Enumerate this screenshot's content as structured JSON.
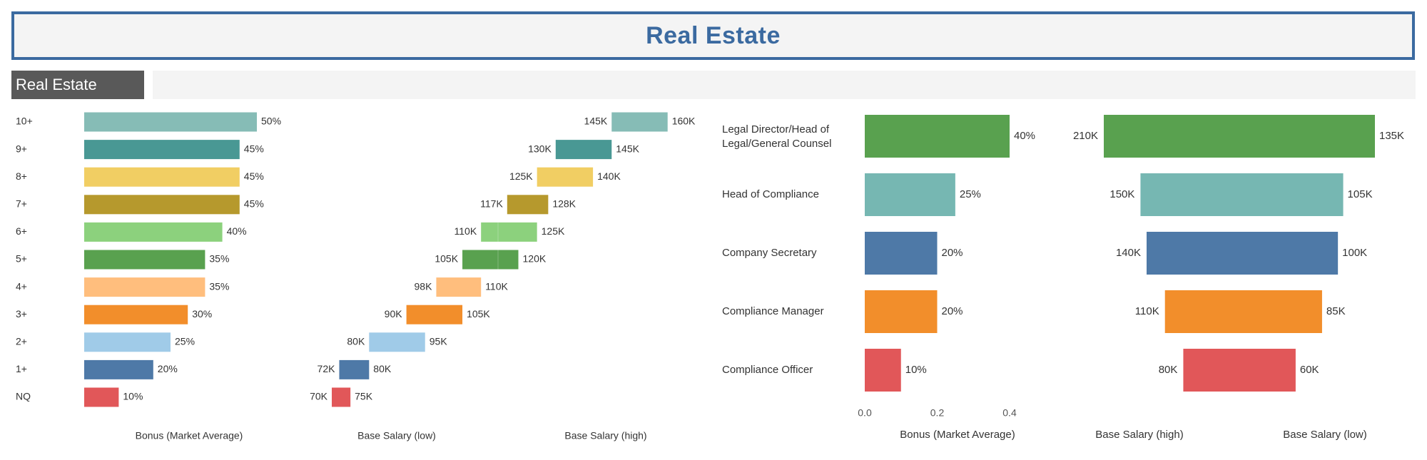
{
  "header": {
    "title": "Real Estate",
    "tab_label": "Real Estate"
  },
  "chart_data": [
    {
      "type": "bar",
      "title": "",
      "xlabel": "Bonus (Market Average)",
      "categories": [
        "10+",
        "9+",
        "8+",
        "7+",
        "6+",
        "5+",
        "4+",
        "3+",
        "2+",
        "1+",
        "NQ"
      ],
      "values": [
        50,
        45,
        45,
        45,
        40,
        35,
        35,
        30,
        25,
        20,
        10
      ],
      "value_labels": [
        "50%",
        "45%",
        "45%",
        "45%",
        "40%",
        "35%",
        "35%",
        "30%",
        "25%",
        "20%",
        "10%"
      ],
      "colors": [
        "#86bcb6",
        "#499894",
        "#f1ce63",
        "#b6992d",
        "#8cd17d",
        "#59a14f",
        "#ffbe7d",
        "#f28e2b",
        "#a0cbe8",
        "#4e79a7",
        "#e15759"
      ]
    },
    {
      "type": "bar",
      "title": "",
      "xlabels": [
        "Base Salary (low)",
        "Base Salary (high)"
      ],
      "categories": [
        "10+",
        "9+",
        "8+",
        "7+",
        "6+",
        "5+",
        "4+",
        "3+",
        "2+",
        "1+",
        "NQ"
      ],
      "series": [
        {
          "name": "Base Salary (low)",
          "values": [
            145,
            130,
            125,
            117,
            110,
            105,
            98,
            90,
            80,
            72,
            70
          ],
          "labels": [
            "145K",
            "130K",
            "125K",
            "117K",
            "110K",
            "105K",
            "98K",
            "90K",
            "80K",
            "72K",
            "70K"
          ]
        },
        {
          "name": "Base Salary (high)",
          "values": [
            160,
            145,
            140,
            128,
            125,
            120,
            110,
            105,
            95,
            80,
            75
          ],
          "labels": [
            "160K",
            "145K",
            "140K",
            "128K",
            "125K",
            "120K",
            "110K",
            "105K",
            "95K",
            "80K",
            "75K"
          ]
        }
      ]
    },
    {
      "type": "bar",
      "title": "",
      "xlabel": "Bonus (Market Average)",
      "xlim": [
        0,
        0.4
      ],
      "ticks": [
        "0.0",
        "0.2",
        "0.4"
      ],
      "categories": [
        [
          "Legal Director/Head of",
          "Legal/General Counsel"
        ],
        [
          "Head of Compliance"
        ],
        [
          "Company Secretary"
        ],
        [
          "Compliance Manager"
        ],
        [
          "Compliance Officer"
        ]
      ],
      "values": [
        0.4,
        0.25,
        0.2,
        0.2,
        0.1
      ],
      "value_labels": [
        "40%",
        "25%",
        "20%",
        "20%",
        "10%"
      ],
      "colors": [
        "#59a14f",
        "#76b7b2",
        "#4e79a7",
        "#f28e2b",
        "#e15759"
      ]
    },
    {
      "type": "bar",
      "title": "",
      "xlabels": [
        "Base Salary (high)",
        "Base Salary (low)"
      ],
      "categories": [
        "Legal Director/Head of Legal/General Counsel",
        "Head of Compliance",
        "Company Secretary",
        "Compliance Manager",
        "Compliance Officer"
      ],
      "series": [
        {
          "name": "Base Salary (high)",
          "values": [
            210,
            150,
            140,
            110,
            80
          ],
          "labels": [
            "210K",
            "150K",
            "140K",
            "110K",
            "80K"
          ]
        },
        {
          "name": "Base Salary (low)",
          "values": [
            135,
            105,
            100,
            85,
            60
          ],
          "labels": [
            "135K",
            "105K",
            "100K",
            "85K",
            "60K"
          ]
        }
      ]
    }
  ]
}
